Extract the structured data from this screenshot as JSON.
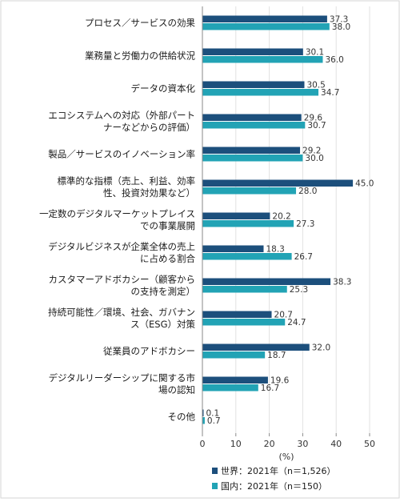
{
  "colors": {
    "world": "#1c4f7c",
    "domestic": "#22a3b5"
  },
  "chart_data": {
    "type": "bar",
    "orientation": "horizontal",
    "categories": [
      [
        "プロセス／サービスの効果"
      ],
      [
        "業務量と労働力の供給状況"
      ],
      [
        "データの資本化"
      ],
      [
        "エコシステムへの対応（外部パート",
        "ナーなどからの評価）"
      ],
      [
        "製品／サービスのイノベーション率"
      ],
      [
        "標準的な指標（売上、利益、効率",
        "性、投資対効果など）"
      ],
      [
        "一定数のデジタルマーケットプレイス",
        "での事業展開"
      ],
      [
        "デジタルビジネスが企業全体の売上",
        "に占める割合"
      ],
      [
        "カスタマーアドボカシー（顧客から",
        "の支持を測定）"
      ],
      [
        "持続可能性／環境、社会、ガバナン",
        "ス（ESG）対策"
      ],
      [
        "従業員のアドボカシー"
      ],
      [
        "デジタルリーダーシップに関する市",
        "場の認知"
      ],
      [
        "その他"
      ]
    ],
    "series": [
      {
        "name": "世界：2021年（n＝1,526）",
        "values": [
          37.3,
          30.1,
          30.5,
          29.6,
          29.2,
          45.0,
          20.2,
          18.3,
          38.3,
          20.7,
          32.0,
          19.6,
          0.1
        ]
      },
      {
        "name": "国内：2021年（n＝150）",
        "values": [
          38.0,
          36.0,
          34.7,
          30.7,
          30.0,
          28.0,
          27.3,
          26.7,
          25.3,
          24.7,
          18.7,
          16.7,
          0.7
        ]
      }
    ],
    "xlim": [
      0,
      50
    ],
    "xticks": [
      0,
      10,
      20,
      30,
      40,
      50
    ],
    "xlabel": "(%)",
    "legend_position": "bottom"
  }
}
